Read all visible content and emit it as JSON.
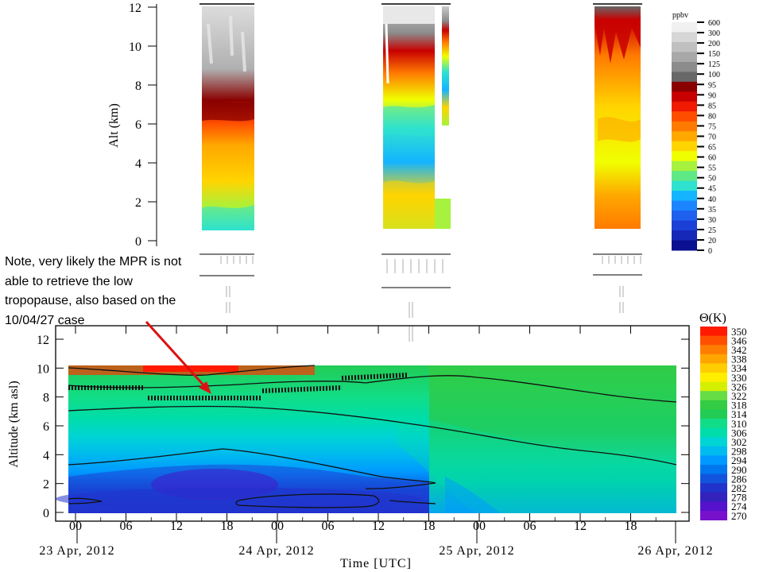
{
  "note": {
    "lines": [
      "Note, very likely the MPR is not",
      "able to retrieve the low",
      "tropopause, also based on the",
      "10/04/27 case"
    ]
  },
  "chart_data": [
    {
      "type": "heatmap",
      "title": "",
      "ylabel": "Alt (km)",
      "ylim": [
        0,
        12
      ],
      "yticks": [
        "0",
        "2",
        "4",
        "6",
        "8",
        "10",
        "12"
      ],
      "colorbar": {
        "unit": "ppbv",
        "labels": [
          "600",
          "300",
          "200",
          "150",
          "125",
          "100",
          "95",
          "90",
          "85",
          "80",
          "75",
          "70",
          "65",
          "60",
          "55",
          "50",
          "45",
          "40",
          "35",
          "30",
          "25",
          "20",
          "0"
        ],
        "colors": [
          "#f0f0f0",
          "#d6d6d6",
          "#c0c0c0",
          "#a8a8a8",
          "#8c8c8c",
          "#686868",
          "#8a0000",
          "#c80000",
          "#ef1a00",
          "#ff4d00",
          "#ff7a00",
          "#ffa800",
          "#ffd400",
          "#f0ff00",
          "#a6f23e",
          "#5fe986",
          "#2ee2cf",
          "#14b4ff",
          "#1a85ff",
          "#1f60ee",
          "#1a40d6",
          "#1528b8",
          "#0a108f"
        ]
      },
      "panels": [
        {
          "name": "profile-block-1",
          "top_km": 11.8,
          "bottom_km": 0.6
        },
        {
          "name": "profile-block-2",
          "top_km": 12.0,
          "bottom_km": 0.6
        },
        {
          "name": "profile-block-3",
          "top_km": 12.0,
          "bottom_km": 0.6
        }
      ]
    },
    {
      "type": "heatmap",
      "title": "",
      "xlabel": "Time [UTC]",
      "ylabel": "Altitude (km asl)",
      "ylim": [
        0,
        12
      ],
      "yticks": [
        "0",
        "2",
        "4",
        "6",
        "8",
        "10",
        "12"
      ],
      "xticks": [
        "00",
        "06",
        "12",
        "18",
        "00",
        "06",
        "12",
        "18",
        "00",
        "06",
        "12",
        "18"
      ],
      "dates": [
        "23 Apr, 2012",
        "24 Apr, 2012",
        "25 Apr, 2012",
        "26 Apr, 2012"
      ],
      "colorbar": {
        "unit": "Θ(K)",
        "labels": [
          "350",
          "346",
          "342",
          "338",
          "334",
          "330",
          "326",
          "322",
          "318",
          "314",
          "310",
          "306",
          "302",
          "298",
          "294",
          "290",
          "286",
          "282",
          "278",
          "274",
          "270"
        ],
        "colors": [
          "#ff1a00",
          "#ff4f00",
          "#ff7d00",
          "#ffa500",
          "#ffcd00",
          "#ffee00",
          "#d4f000",
          "#66dd44",
          "#33cc44",
          "#22cc55",
          "#11dd88",
          "#00ddaa",
          "#00d4d4",
          "#00bbee",
          "#0099ff",
          "#0077ee",
          "#1155dd",
          "#2233cc",
          "#3322bb",
          "#5511cc",
          "#7711cc"
        ]
      },
      "tropopause_markers_km": [
        [
          1.5,
          8.7
        ],
        [
          8.0,
          8.1
        ],
        [
          12.0,
          8.6
        ],
        [
          14.5,
          9.2
        ],
        [
          15.5,
          9.5
        ]
      ]
    }
  ]
}
